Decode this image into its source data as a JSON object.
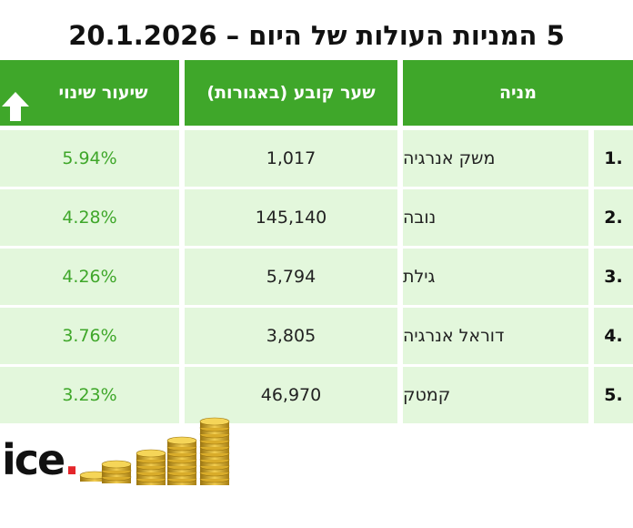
{
  "title": "5 המניות העולות של היום – 20.1.2026",
  "headers": {
    "stock": "מניה",
    "price": "שער קובע (באגורות)",
    "change": "שיעור שינוי"
  },
  "rows": [
    {
      "rank": "1.",
      "name": "משק אנרגיה",
      "price": "1,017",
      "change": "5.94%"
    },
    {
      "rank": "2.",
      "name": "נובה",
      "price": "145,140",
      "change": "4.28%"
    },
    {
      "rank": "3.",
      "name": "גילת",
      "price": "5,794",
      "change": "4.26%"
    },
    {
      "rank": "4.",
      "name": "דוראל אנרגיה",
      "price": "3,805",
      "change": "3.76%"
    },
    {
      "rank": "5.",
      "name": "קמטק",
      "price": "46,970",
      "change": "3.23%"
    }
  ],
  "logo": {
    "text": "ice",
    "dot": "."
  },
  "colors": {
    "header_green": "#3fa72a",
    "row_bg": "#e3f7dc",
    "change_green": "#3fa72a",
    "logo_red": "#e4262b"
  },
  "icons": [
    "arrow-up-icon",
    "coin-stacks-icon"
  ]
}
